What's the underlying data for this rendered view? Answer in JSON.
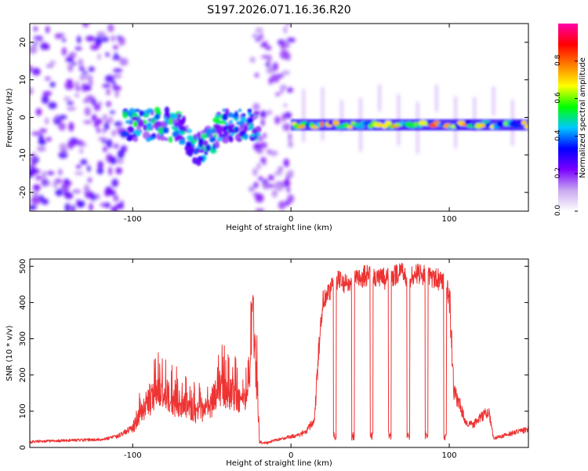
{
  "title": "S197.2026.071.16.36.R20",
  "colors": {
    "series": "#ee3333",
    "frame": "#000000",
    "background": "#ffffff"
  },
  "chart_data": [
    {
      "type": "heatmap",
      "name": "spectrogram",
      "xlabel": "Height of straight line (km)",
      "ylabel": "Frequency (Hz)",
      "xlim": [
        -165,
        150
      ],
      "ylim": [
        -25,
        25
      ],
      "x_ticks": [
        -100,
        0,
        100
      ],
      "y_ticks": [
        -20,
        -10,
        0,
        10,
        20
      ],
      "colorbar": {
        "label": "Normalized spectral amplitude",
        "range": [
          0,
          1
        ],
        "ticks": [
          "0.0",
          "0.2",
          "0.4",
          "0.6",
          "0.8"
        ],
        "tick_values": [
          0.0,
          0.2,
          0.4,
          0.6,
          0.8
        ],
        "colormap": [
          "#ffffff",
          "#c8a8f0",
          "#7a00ff",
          "#0000ff",
          "#00c8ff",
          "#00ff00",
          "#ffff00",
          "#ff8000",
          "#ff0000",
          "#ff00aa"
        ]
      },
      "features": [
        {
          "region": "noise",
          "x_range": [
            -165,
            -105
          ],
          "freq_range": [
            -25,
            25
          ],
          "amplitude": 0.15
        },
        {
          "region": "noise",
          "x_range": [
            -25,
            0
          ],
          "freq_range": [
            -25,
            25
          ],
          "amplitude": 0.12
        },
        {
          "region": "signal",
          "x_range": [
            -105,
            -20
          ],
          "freq_center": -2,
          "freq_spread": 8,
          "amplitude": 0.35
        },
        {
          "region": "tone",
          "x_range": [
            0,
            150
          ],
          "freq_center": -2,
          "freq_spread": 1.5,
          "amplitude": 0.55
        }
      ]
    },
    {
      "type": "line",
      "name": "snr",
      "xlabel": "Height of straight line (km)",
      "ylabel": "SNR (10 * v/v)",
      "xlim": [
        -165,
        150
      ],
      "ylim": [
        0,
        520
      ],
      "x_ticks": [
        -100,
        0,
        100
      ],
      "y_ticks": [
        0,
        100,
        200,
        300,
        400,
        500
      ],
      "x": [
        -165,
        -150,
        -135,
        -120,
        -110,
        -100,
        -95,
        -90,
        -85,
        -80,
        -75,
        -70,
        -65,
        -60,
        -55,
        -50,
        -45,
        -40,
        -35,
        -30,
        -26,
        -24,
        -22,
        -20,
        -15,
        -10,
        -5,
        0,
        5,
        10,
        15,
        17,
        20,
        25,
        30,
        35,
        40,
        45,
        50,
        55,
        60,
        65,
        70,
        75,
        80,
        85,
        90,
        95,
        98,
        100,
        103,
        106,
        110,
        115,
        120,
        125,
        128,
        132,
        140,
        150
      ],
      "values": [
        15,
        18,
        20,
        22,
        30,
        55,
        90,
        130,
        150,
        155,
        130,
        120,
        110,
        95,
        100,
        130,
        160,
        150,
        140,
        120,
        230,
        330,
        240,
        15,
        12,
        20,
        25,
        30,
        35,
        45,
        80,
        240,
        400,
        440,
        460,
        450,
        460,
        470,
        480,
        470,
        465,
        475,
        480,
        470,
        480,
        475,
        470,
        460,
        440,
        420,
        150,
        130,
        70,
        60,
        85,
        100,
        25,
        30,
        40,
        50
      ]
    }
  ]
}
